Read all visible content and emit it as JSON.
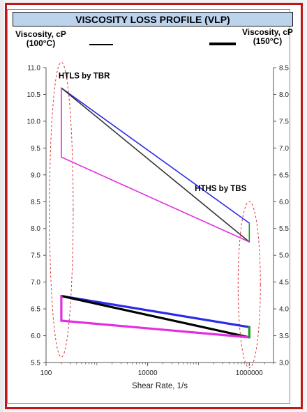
{
  "chart_data": {
    "type": "line",
    "title": "VISCOSITY LOSS PROFILE (VLP)",
    "legend": {
      "left": {
        "label_line1": "Viscosity, cP",
        "label_line2": "(100°C)"
      },
      "right": {
        "label_line1": "Viscosity, cP",
        "label_line2": "(150°C)"
      }
    },
    "xlabel": "Shear Rate, 1/s",
    "x_scale": "log",
    "xlim": [
      100,
      3000000
    ],
    "x_ticks": [
      100,
      10000,
      1000000
    ],
    "x_tick_labels": [
      "100",
      "10000",
      "1000000"
    ],
    "ylim_left": [
      5.5,
      11.0
    ],
    "y_ticks_left": [
      "5.5",
      "6.0",
      "6.5",
      "7.0",
      "7.5",
      "8.0",
      "8.5",
      "9.0",
      "9.5",
      "10.0",
      "10.5",
      "11.0"
    ],
    "ylim_right": [
      3.0,
      8.5
    ],
    "y_ticks_right": [
      "3.0",
      "3.5",
      "4.0",
      "4.5",
      "5.0",
      "5.5",
      "6.0",
      "6.5",
      "7.0",
      "7.5",
      "8.0",
      "8.5"
    ],
    "annotations": [
      {
        "text": "HTLS by TBR",
        "x": 200,
        "y": 10.8
      },
      {
        "text": "HTHS by TBS",
        "x": 300000,
        "y": 8.7
      }
    ],
    "series": [
      {
        "axis": "left",
        "color": "#2a2ae8",
        "width": 1.6,
        "points": [
          [
            200,
            10.62
          ],
          [
            1000000,
            8.1
          ]
        ]
      },
      {
        "axis": "left",
        "color": "#333333",
        "width": 1.6,
        "points": [
          [
            200,
            10.62
          ],
          [
            1000000,
            7.75
          ]
        ]
      },
      {
        "axis": "left",
        "color": "#e22ee2",
        "width": 1.6,
        "points": [
          [
            200,
            9.33
          ],
          [
            1000000,
            7.75
          ]
        ]
      },
      {
        "axis": "left",
        "color": "#e22ee2",
        "width": 1.6,
        "points": [
          [
            200,
            10.62
          ],
          [
            200,
            9.33
          ]
        ]
      },
      {
        "axis": "left",
        "color": "#1e9a1e",
        "width": 1.6,
        "points": [
          [
            1000000,
            8.1
          ],
          [
            1000000,
            7.75
          ]
        ]
      },
      {
        "axis": "right",
        "color": "#2a2ae8",
        "width": 3.2,
        "points": [
          [
            200,
            4.24
          ],
          [
            1000000,
            3.66
          ]
        ]
      },
      {
        "axis": "right",
        "color": "#000000",
        "width": 3.2,
        "points": [
          [
            200,
            4.24
          ],
          [
            1000000,
            3.47
          ]
        ]
      },
      {
        "axis": "right",
        "color": "#e22ee2",
        "width": 3.2,
        "points": [
          [
            200,
            3.78
          ],
          [
            1000000,
            3.47
          ]
        ]
      },
      {
        "axis": "right",
        "color": "#e22ee2",
        "width": 3.2,
        "points": [
          [
            200,
            4.24
          ],
          [
            200,
            3.78
          ]
        ]
      },
      {
        "axis": "right",
        "color": "#1e9a1e",
        "width": 3.2,
        "points": [
          [
            1000000,
            3.66
          ],
          [
            1000000,
            3.47
          ]
        ]
      }
    ],
    "ellipses": [
      {
        "color": "#e03030",
        "x": 200,
        "y_center": 8.35,
        "y_halfspan": 2.75
      },
      {
        "color": "#e03030",
        "x": 1000000,
        "y_center": 6.95,
        "y_halfspan": 1.55
      }
    ]
  }
}
